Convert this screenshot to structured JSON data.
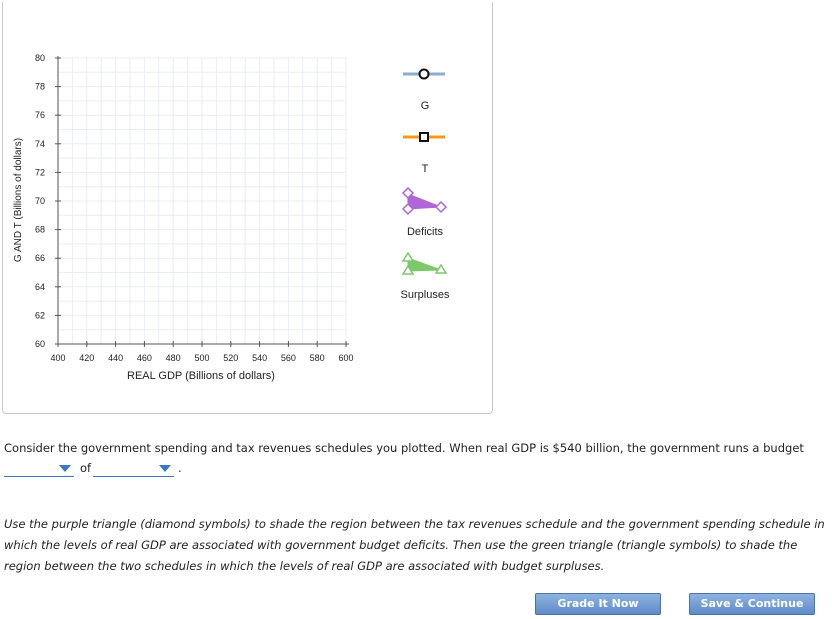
{
  "chart_data": {
    "type": "line",
    "xlabel": "REAL GDP (Billions of dollars)",
    "ylabel": "G AND T (Billions of dollars)",
    "xlim": [
      400,
      600
    ],
    "ylim": [
      60,
      80
    ],
    "x_ticks": [
      "400",
      "420",
      "440",
      "460",
      "480",
      "500",
      "520",
      "540",
      "560",
      "580",
      "600"
    ],
    "y_ticks": [
      "60",
      "62",
      "64",
      "66",
      "68",
      "70",
      "72",
      "74",
      "76",
      "78",
      "80"
    ],
    "grid": true,
    "series": []
  },
  "legend": {
    "g": {
      "label": "G",
      "color": "#8aaed0",
      "icon": "circle-marker"
    },
    "t": {
      "label": "T",
      "color": "#f39c12",
      "icon": "square-marker"
    },
    "deficits": {
      "label": "Deficits",
      "color": "#a855d0",
      "icon": "diamond-triangle"
    },
    "surpluses": {
      "label": "Surpluses",
      "color": "#7cc96b",
      "icon": "triangle-triangle"
    }
  },
  "question": {
    "text": "Consider the government spending and tax revenues schedules you plotted. When real GDP is $540 billion, the government runs a budget",
    "of": "of",
    "period": ".",
    "dropdown1": "",
    "dropdown2": ""
  },
  "instructions": "Use the purple triangle (diamond symbols) to shade the region between the tax revenues schedule and the government spending schedule in which the levels of real GDP are associated with government budget deficits. Then use the green triangle (triangle symbols) to shade the region between the two schedules in which the levels of real GDP are associated with budget surpluses.",
  "buttons": {
    "grade": "Grade It Now",
    "save": "Save & Continue"
  }
}
